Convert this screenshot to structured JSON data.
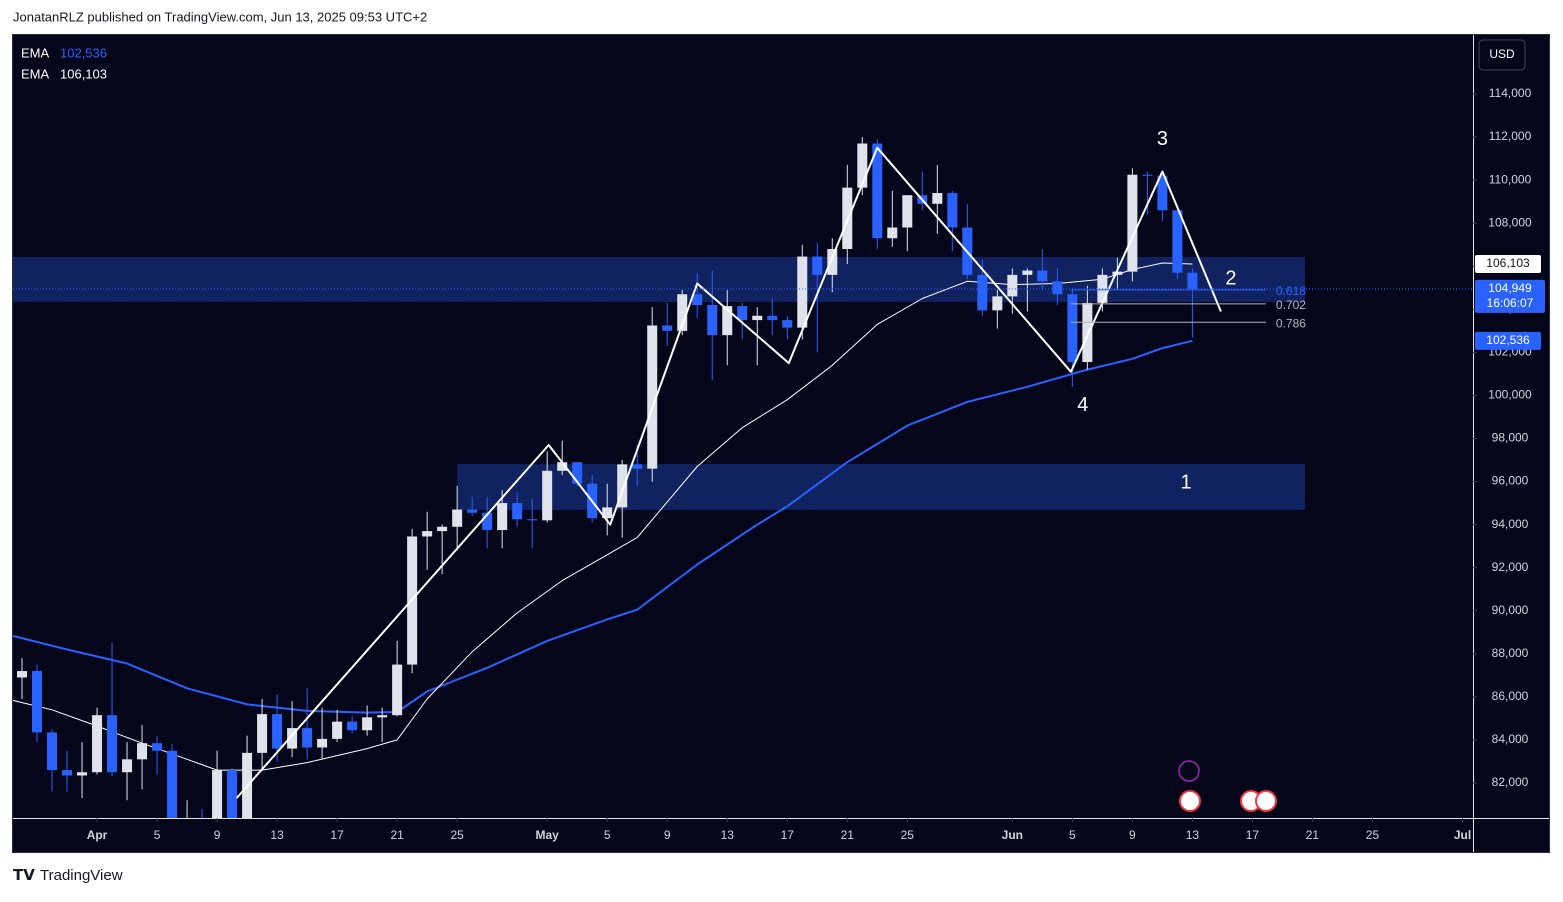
{
  "header": "JonatanRLZ published on TradingView.com, Jun 13, 2025 09:53 UTC+2",
  "footer": "TradingView",
  "chart_data": {
    "type": "candlestick",
    "currency": "USD",
    "grid": false,
    "xlim": [
      -5.6,
      91.7
    ],
    "ylim": [
      80375,
      116740
    ],
    "yticks": [
      {
        "value": 82000,
        "label": "82,000"
      },
      {
        "value": 84000,
        "label": "84,000"
      },
      {
        "value": 86000,
        "label": "86,000"
      },
      {
        "value": 88000,
        "label": "88,000"
      },
      {
        "value": 90000,
        "label": "90,000"
      },
      {
        "value": 92000,
        "label": "92,000"
      },
      {
        "value": 94000,
        "label": "94,000"
      },
      {
        "value": 96000,
        "label": "96,000"
      },
      {
        "value": 98000,
        "label": "98,000"
      },
      {
        "value": 100000,
        "label": "100,000"
      },
      {
        "value": 102000,
        "label": "102,000"
      },
      {
        "value": 104000,
        "label": "104,000"
      },
      {
        "value": 106000,
        "label": "106,000"
      },
      {
        "value": 108000,
        "label": "108,000"
      },
      {
        "value": 110000,
        "label": "110,000"
      },
      {
        "value": 112000,
        "label": "112,000"
      },
      {
        "value": 114000,
        "label": "114,000"
      }
    ],
    "xticks": [
      {
        "value": 0,
        "label": "Apr"
      },
      {
        "value": 4,
        "label": "5"
      },
      {
        "value": 8,
        "label": "9"
      },
      {
        "value": 12,
        "label": "13"
      },
      {
        "value": 16,
        "label": "17"
      },
      {
        "value": 20,
        "label": "21"
      },
      {
        "value": 24,
        "label": "25"
      },
      {
        "value": 30,
        "label": "May"
      },
      {
        "value": 34,
        "label": "5"
      },
      {
        "value": 38,
        "label": "9"
      },
      {
        "value": 42,
        "label": "13"
      },
      {
        "value": 46,
        "label": "17"
      },
      {
        "value": 50,
        "label": "21"
      },
      {
        "value": 54,
        "label": "25"
      },
      {
        "value": 61,
        "label": "Jun"
      },
      {
        "value": 65,
        "label": "5"
      },
      {
        "value": 69,
        "label": "9"
      },
      {
        "value": 73,
        "label": "13"
      },
      {
        "value": 77,
        "label": "17"
      },
      {
        "value": 81,
        "label": "21"
      },
      {
        "value": 85,
        "label": "25"
      },
      {
        "value": 91,
        "label": "Jul"
      }
    ],
    "up_color": "#e0e3eb",
    "down_color": "#2962ff",
    "x": [
      -6,
      -5,
      -4,
      -3,
      -2,
      -1,
      0,
      1,
      2,
      3,
      4,
      5,
      6,
      7,
      8,
      9,
      10,
      11,
      12,
      13,
      14,
      15,
      16,
      17,
      18,
      19,
      20,
      21,
      22,
      23,
      24,
      25,
      26,
      27,
      28,
      29,
      30,
      31,
      32,
      33,
      34,
      35,
      36,
      37,
      38,
      39,
      40,
      41,
      42,
      43,
      44,
      45,
      46,
      47,
      48,
      49,
      50,
      51,
      52,
      53,
      54,
      55,
      56,
      57,
      58,
      59,
      60,
      61,
      62,
      63,
      64,
      65,
      66,
      67,
      68,
      69,
      70,
      71,
      72,
      73
    ],
    "open": [
      87200,
      86900,
      87200,
      84350,
      82600,
      82350,
      82500,
      85150,
      82500,
      83100,
      83850,
      83500,
      78400,
      79200,
      76300,
      82600,
      79600,
      83400,
      85200,
      83600,
      84550,
      83650,
      84050,
      84850,
      84450,
      85050,
      85150,
      87500,
      93450,
      93700,
      93900,
      94700,
      94550,
      93750,
      95000,
      94250,
      94200,
      96500,
      96900,
      95900,
      94300,
      94800,
      96800,
      96600,
      103250,
      103000,
      104700,
      104200,
      102800,
      104150,
      103500,
      103700,
      103500,
      103150,
      106450,
      105600,
      106800,
      109650,
      111700,
      107300,
      107800,
      109300,
      108900,
      109400,
      107800,
      105600,
      103950,
      104600,
      105600,
      105800,
      105300,
      104700,
      101550,
      104300,
      105600,
      105750,
      110250,
      110200,
      108600,
      105700
    ],
    "high": [
      87700,
      87800,
      87500,
      84500,
      83500,
      83900,
      85500,
      88500,
      83900,
      84700,
      84200,
      83800,
      81200,
      80800,
      83500,
      82700,
      84200,
      85900,
      86100,
      85800,
      86400,
      85500,
      85400,
      85100,
      85600,
      85500,
      88600,
      93800,
      94600,
      94000,
      95800,
      95300,
      95300,
      95600,
      95500,
      95200,
      97400,
      97900,
      96900,
      96300,
      95900,
      97000,
      97700,
      104100,
      104300,
      104900,
      105700,
      105800,
      104900,
      104300,
      104100,
      104500,
      103700,
      107000,
      107100,
      107300,
      110700,
      112000,
      111900,
      109500,
      109300,
      110400,
      110700,
      109500,
      108900,
      106300,
      104900,
      105900,
      105900,
      106800,
      105900,
      105000,
      105100,
      105900,
      106400,
      110550,
      110400,
      110400,
      108800,
      105900
    ],
    "low": [
      86300,
      85900,
      83900,
      81600,
      81600,
      81300,
      82400,
      82300,
      81200,
      81700,
      82400,
      77200,
      74500,
      76200,
      74600,
      78500,
      79000,
      82700,
      83000,
      83200,
      83100,
      83100,
      83900,
      84300,
      84200,
      83900,
      85100,
      87100,
      91900,
      91700,
      92800,
      94400,
      92900,
      92900,
      93900,
      92900,
      94100,
      96300,
      95800,
      94100,
      93500,
      93400,
      95800,
      96000,
      102300,
      102800,
      103600,
      100700,
      101400,
      102600,
      101400,
      102800,
      102600,
      102600,
      102000,
      104800,
      106100,
      109300,
      106800,
      106900,
      106700,
      108600,
      107500,
      106700,
      105400,
      103700,
      103100,
      103800,
      103900,
      104900,
      104200,
      100400,
      101200,
      103900,
      104900,
      105300,
      108400,
      108100,
      105400,
      102700
    ],
    "close": [
      86900,
      87200,
      84350,
      82600,
      82350,
      82500,
      85150,
      82500,
      83100,
      83850,
      83500,
      78400,
      79200,
      76300,
      82600,
      79600,
      83400,
      85200,
      83600,
      84550,
      83650,
      84050,
      84850,
      84450,
      85050,
      85150,
      87500,
      93450,
      93700,
      93900,
      94700,
      94550,
      93750,
      95000,
      94250,
      94200,
      96500,
      96900,
      95900,
      94300,
      94800,
      96800,
      96600,
      103250,
      103000,
      104700,
      104200,
      102800,
      104150,
      103500,
      103700,
      103500,
      103150,
      106450,
      105600,
      106800,
      109650,
      111700,
      107300,
      107800,
      109300,
      108900,
      109400,
      107800,
      105600,
      103950,
      104600,
      105600,
      105800,
      105300,
      104700,
      101550,
      104300,
      105600,
      105750,
      110250,
      110200,
      108600,
      105700,
      104949
    ],
    "last_label": "104,949",
    "countdown": "16:06:07",
    "ema": [
      {
        "name": "EMA",
        "color": "#2962ff",
        "legend_value": "102,536",
        "x": [
          -6,
          -2,
          2,
          6,
          10,
          14,
          18,
          20,
          22,
          26,
          30,
          34,
          36,
          40,
          44,
          46,
          50,
          54,
          58,
          62,
          66,
          69,
          71,
          73
        ],
        "values": [
          88900,
          88200,
          87550,
          86400,
          85650,
          85350,
          85270,
          85300,
          86250,
          87350,
          88600,
          89600,
          90050,
          92150,
          94000,
          94850,
          96900,
          98600,
          99700,
          100400,
          101200,
          101700,
          102200,
          102536
        ]
      },
      {
        "name": "EMA",
        "color": "#ffffff",
        "legend_value": "106,103",
        "x": [
          -6,
          -3,
          0,
          3,
          6,
          8,
          11,
          14,
          18,
          20,
          22,
          25,
          28,
          31,
          34,
          36,
          40,
          43,
          46,
          49,
          52,
          55,
          58,
          61,
          64,
          67,
          69,
          71,
          73
        ],
        "values": [
          85900,
          85400,
          84650,
          83850,
          83100,
          82600,
          82600,
          82950,
          83600,
          84000,
          85900,
          88100,
          89900,
          91400,
          92600,
          93400,
          96700,
          98500,
          99800,
          101400,
          103300,
          104500,
          105300,
          105150,
          105200,
          105400,
          105850,
          106150,
          106103
        ]
      }
    ],
    "zigzag": {
      "color": "#ffffff",
      "x": [
        9.3,
        30.1,
        34.2,
        40,
        46.1,
        52,
        64.9,
        71,
        74.9
      ],
      "values": [
        81300,
        97700,
        94000,
        105200,
        101500,
        111500,
        101100,
        110400,
        103900
      ]
    },
    "zones": [
      {
        "x": [
          -5.6,
          80.5
        ],
        "ylim": [
          104340,
          106430
        ]
      },
      {
        "x": [
          24,
          80.5
        ],
        "ylim": [
          94680,
          96810
        ]
      }
    ],
    "fib": {
      "x": [
        64.9,
        77.9
      ],
      "levels": [
        0.618,
        0.702,
        0.786
      ],
      "prices": [
        104900,
        104250,
        103400
      ]
    },
    "wave_labels": [
      "3",
      "2",
      "4",
      "1"
    ]
  }
}
